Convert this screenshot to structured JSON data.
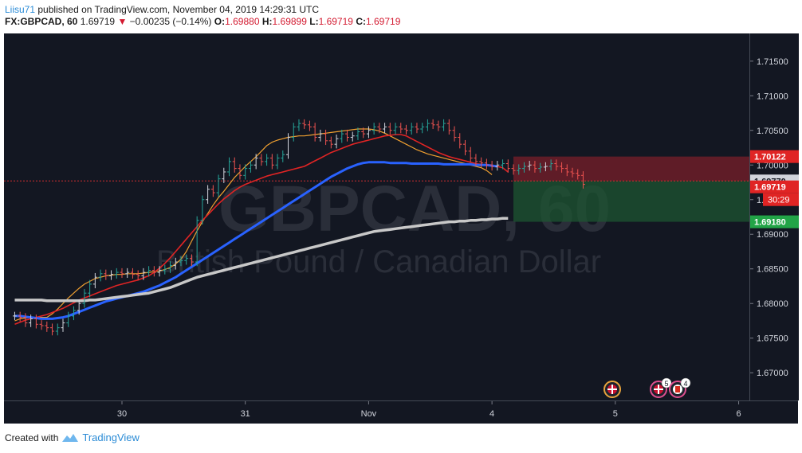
{
  "header": {
    "publisher": "Liisu71",
    "published_text": "published on TradingView.com, November 04, 2019 14:29:31 UTC",
    "symbol": "FX:GBPCAD, 60",
    "last": "1.69719",
    "change_arrow": "▼",
    "change": "−0.00235 (−0.14%)",
    "open_label": "O:",
    "open": "1.69880",
    "high_label": "H:",
    "high": "1.69899",
    "low_label": "L:",
    "low": "1.69719",
    "close_label": "C:",
    "close": "1.69719"
  },
  "watermark": {
    "symbol": "GBPCAD, 60",
    "description": "British Pound / Canadian Dollar"
  },
  "footer": {
    "created_with": "Created with",
    "brand": "TradingView"
  },
  "colors": {
    "background": "#131722",
    "up_candle": "#26a69a",
    "down_candle": "#ef5350",
    "ma_fast": "#f0a030",
    "ma_mid": "#e02424",
    "ma_slow": "#2962ff",
    "ma_long": "#c8c8c8",
    "stop_zone": "#7a1f2a",
    "target_zone": "#1e5631"
  },
  "chart_data": {
    "type": "line",
    "title": "FX:GBPCAD, 60",
    "xlabel": "",
    "ylabel": "",
    "y_ticks": [
      "1.67000",
      "1.67500",
      "1.68000",
      "1.68500",
      "1.69000",
      "1.69500",
      "1.70000",
      "1.70500",
      "1.71000",
      "1.71500"
    ],
    "ylim": [
      1.666,
      1.719
    ],
    "x_ticks": [
      "30",
      "31",
      "Nov",
      "4",
      "5",
      "6"
    ],
    "x_tick_index": [
      20,
      43,
      66,
      89,
      112,
      135
    ],
    "xlim": [
      -2,
      137
    ],
    "grid": false,
    "price_labels": {
      "stop": "1.70122",
      "entry": "1.69770",
      "current": "1.69719",
      "countdown": "30:29",
      "target": "1.69180"
    },
    "position": {
      "type": "short",
      "entry": 1.6977,
      "stop": 1.70122,
      "target": 1.6918,
      "start_index": 93,
      "end_index": 136
    },
    "bars": {
      "start_index": 0,
      "close": [
        1.6782,
        1.678,
        1.6772,
        1.6778,
        1.677,
        1.6768,
        1.6765,
        1.676,
        1.6765,
        1.6772,
        1.6782,
        1.679,
        1.68,
        1.6815,
        1.6828,
        1.6838,
        1.6843,
        1.684,
        1.6842,
        1.6845,
        1.6843,
        1.6845,
        1.6842,
        1.684,
        1.6845,
        1.6848,
        1.6845,
        1.6848,
        1.685,
        1.6855,
        1.686,
        1.6862,
        1.6865,
        1.686,
        1.692,
        1.695,
        1.6965,
        1.696,
        1.698,
        1.699,
        1.7005,
        1.6995,
        1.6985,
        1.6995,
        1.7,
        1.701,
        1.7005,
        1.701,
        1.7,
        1.701,
        1.7015,
        1.704,
        1.7055,
        1.706,
        1.7058,
        1.7055,
        1.704,
        1.7045,
        1.7035,
        1.703,
        1.7038,
        1.7045,
        1.704,
        1.7042,
        1.7048,
        1.7045,
        1.705,
        1.7055,
        1.7052,
        1.7055,
        1.705,
        1.7055,
        1.7052,
        1.705,
        1.7055,
        1.7052,
        1.7055,
        1.706,
        1.7058,
        1.7055,
        1.706,
        1.705,
        1.704,
        1.703,
        1.702,
        1.701,
        1.7005,
        1.7003,
        1.7,
        1.6998,
        1.7,
        1.7002,
        1.6995,
        1.6992,
        1.6995,
        1.6998,
        1.7,
        1.6995,
        1.6997,
        1.6998,
        1.7002,
        1.6998,
        1.6995,
        1.699,
        1.6988,
        1.6985,
        1.6972
      ]
    },
    "series": [
      {
        "name": "",
        "style": "ma_fast",
        "start_index": 0,
        "values": [
          1.6775,
          1.6778,
          1.6779,
          1.678,
          1.678,
          1.678,
          1.678,
          1.6785,
          1.6792,
          1.68,
          1.6808,
          1.6815,
          1.6822,
          1.6828,
          1.6832,
          1.6836,
          1.6838,
          1.684,
          1.6841,
          1.6842,
          1.6842,
          1.6843,
          1.6843,
          1.6843,
          1.6844,
          1.6845,
          1.6846,
          1.6847,
          1.6849,
          1.6852,
          1.6857,
          1.6864,
          1.6875,
          1.689,
          1.6905,
          1.6918,
          1.693,
          1.6942,
          1.6953,
          1.6962,
          1.6972,
          1.6982,
          1.699,
          1.6998,
          1.7005,
          1.7012,
          1.702,
          1.7028,
          1.7033,
          1.7036,
          1.7038,
          1.704,
          1.7041,
          1.7042,
          1.7042,
          1.7043,
          1.7044,
          1.7045,
          1.7046,
          1.7047,
          1.7048,
          1.7049,
          1.705,
          1.7051,
          1.7052,
          1.7052,
          1.7052,
          1.7051,
          1.7049,
          1.7046,
          1.7042,
          1.7038,
          1.7034,
          1.703,
          1.7026,
          1.7022,
          1.7019,
          1.7016,
          1.7014,
          1.7012,
          1.701,
          1.7008,
          1.7006,
          1.7004,
          1.7002,
          1.7,
          1.6998,
          1.6996,
          1.6992,
          1.6986
        ]
      },
      {
        "name": "",
        "style": "ma_mid",
        "start_index": 0,
        "values": [
          1.677,
          1.6773,
          1.6776,
          1.6778,
          1.678,
          1.6782,
          1.6784,
          1.6787,
          1.679,
          1.6793,
          1.6797,
          1.6801,
          1.6805,
          1.6808,
          1.6811,
          1.6814,
          1.6817,
          1.682,
          1.6823,
          1.6826,
          1.6828,
          1.683,
          1.6832,
          1.6834,
          1.6837,
          1.684,
          1.6845,
          1.6851,
          1.6858,
          1.6866,
          1.6875,
          1.6884,
          1.6893,
          1.6902,
          1.6911,
          1.692,
          1.6928,
          1.6936,
          1.6944,
          1.6951,
          1.6957,
          1.6963,
          1.6968,
          1.6972,
          1.6975,
          1.6978,
          1.6981,
          1.6984,
          1.6986,
          1.6988,
          1.699,
          1.6992,
          1.6994,
          1.6996,
          1.6998,
          1.7002,
          1.7006,
          1.701,
          1.7014,
          1.7018,
          1.7021,
          1.7024,
          1.7027,
          1.703,
          1.7032,
          1.7034,
          1.7036,
          1.7038,
          1.704,
          1.7042,
          1.7043,
          1.7044,
          1.7044,
          1.7042,
          1.7038,
          1.7034,
          1.703,
          1.7026,
          1.7022,
          1.7018,
          1.7015,
          1.7012,
          1.701,
          1.7008,
          1.7006,
          1.7004,
          1.7002,
          1.7001,
          1.7,
          1.6999,
          1.6998,
          1.6996,
          1.699
        ]
      },
      {
        "name": "",
        "style": "ma_slow",
        "start_index": 0,
        "values": [
          1.6782,
          1.6782,
          1.6781,
          1.678,
          1.6779,
          1.6778,
          1.6778,
          1.6778,
          1.6779,
          1.678,
          1.6782,
          1.6785,
          1.6788,
          1.6791,
          1.6794,
          1.6797,
          1.68,
          1.6803,
          1.6805,
          1.6807,
          1.6809,
          1.6811,
          1.6813,
          1.6815,
          1.6817,
          1.682,
          1.6823,
          1.6826,
          1.683,
          1.6834,
          1.6838,
          1.6843,
          1.6848,
          1.6853,
          1.6858,
          1.6863,
          1.6868,
          1.6873,
          1.6878,
          1.6883,
          1.6888,
          1.6893,
          1.6898,
          1.6903,
          1.6908,
          1.6913,
          1.6918,
          1.6923,
          1.6928,
          1.6933,
          1.6938,
          1.6943,
          1.6948,
          1.6953,
          1.6958,
          1.6963,
          1.6968,
          1.6973,
          1.6978,
          1.6983,
          1.6987,
          1.6991,
          1.6995,
          1.6998,
          1.7001,
          1.7003,
          1.7004,
          1.7004,
          1.7004,
          1.7004,
          1.7003,
          1.7003,
          1.7003,
          1.7003,
          1.7002,
          1.7002,
          1.7002,
          1.7002,
          1.7002,
          1.7002,
          1.7001,
          1.7001,
          1.7001,
          1.7001,
          1.7001,
          1.7001,
          1.7,
          1.7,
          1.7,
          1.6999,
          1.6998
        ]
      },
      {
        "name": "",
        "style": "ma_long",
        "start_index": 0,
        "values": [
          1.6805,
          1.6805,
          1.6805,
          1.6805,
          1.6805,
          1.6805,
          1.6804,
          1.6804,
          1.6804,
          1.6804,
          1.6804,
          1.6804,
          1.6804,
          1.6804,
          1.6805,
          1.6805,
          1.6806,
          1.6807,
          1.6808,
          1.6809,
          1.681,
          1.6811,
          1.6812,
          1.6813,
          1.6814,
          1.6815,
          1.6817,
          1.6819,
          1.6821,
          1.6823,
          1.6826,
          1.6829,
          1.6832,
          1.6835,
          1.6838,
          1.684,
          1.6842,
          1.6844,
          1.6846,
          1.6848,
          1.685,
          1.6852,
          1.6854,
          1.6856,
          1.6858,
          1.686,
          1.6862,
          1.6864,
          1.6866,
          1.6868,
          1.687,
          1.6872,
          1.6874,
          1.6876,
          1.6878,
          1.688,
          1.6882,
          1.6884,
          1.6886,
          1.6888,
          1.689,
          1.6892,
          1.6894,
          1.6896,
          1.6898,
          1.69,
          1.6902,
          1.6904,
          1.6905,
          1.6906,
          1.6907,
          1.6908,
          1.6909,
          1.691,
          1.6911,
          1.6912,
          1.6913,
          1.6914,
          1.6915,
          1.6916,
          1.6917,
          1.6918,
          1.6918,
          1.6919,
          1.6919,
          1.692,
          1.692,
          1.6921,
          1.6921,
          1.6922,
          1.6922,
          1.6923,
          1.6923
        ]
      }
    ]
  }
}
